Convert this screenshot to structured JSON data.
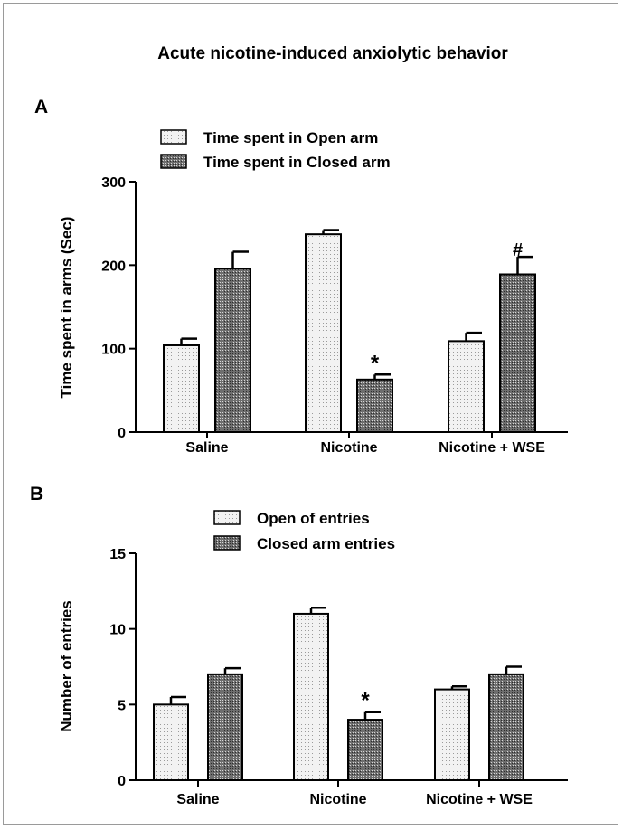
{
  "figure_title": "Acute nicotine-induced anxiolytic behavior",
  "colors": {
    "open_fill": "#f2f2f2",
    "closed_fill": "#7a7a7a",
    "stroke": "#000000"
  },
  "chart_data": [
    {
      "panel_label": "A",
      "type": "bar",
      "categories": [
        "Saline",
        "Nicotine",
        "Nicotine + WSE"
      ],
      "series": [
        {
          "name": "Time spent in Open arm",
          "pattern": "dotted-light",
          "values": [
            104,
            237,
            109
          ],
          "errors": [
            8,
            5,
            10
          ]
        },
        {
          "name": "Time spent in Closed arm",
          "pattern": "crosshatch-dark",
          "values": [
            196,
            63,
            189
          ],
          "errors": [
            20,
            6,
            21
          ]
        }
      ],
      "annotations": [
        {
          "category": "Nicotine",
          "series": 1,
          "text": "*"
        },
        {
          "category": "Nicotine + WSE",
          "series": 1,
          "text": "#"
        }
      ],
      "ylabel": "Time spent in arms (Sec)",
      "xlabel": "",
      "ylim": [
        0,
        300
      ],
      "yticks": [
        0,
        100,
        200,
        300
      ],
      "legend_position": "top-left",
      "grid": false
    },
    {
      "panel_label": "B",
      "type": "bar",
      "categories": [
        "Saline",
        "Nicotine",
        "Nicotine + WSE"
      ],
      "series": [
        {
          "name": "Open of entries",
          "pattern": "dotted-light",
          "values": [
            5,
            11,
            6
          ],
          "errors": [
            0.5,
            0.4,
            0.2
          ]
        },
        {
          "name": "Closed arm entries",
          "pattern": "crosshatch-dark",
          "values": [
            7,
            4,
            7
          ],
          "errors": [
            0.4,
            0.5,
            0.5
          ]
        }
      ],
      "annotations": [
        {
          "category": "Nicotine",
          "series": 1,
          "text": "*"
        }
      ],
      "ylabel": "Number of entries",
      "xlabel": "",
      "ylim": [
        0,
        15
      ],
      "yticks": [
        0,
        5,
        10,
        15
      ],
      "legend_position": "top-left",
      "grid": false
    }
  ]
}
